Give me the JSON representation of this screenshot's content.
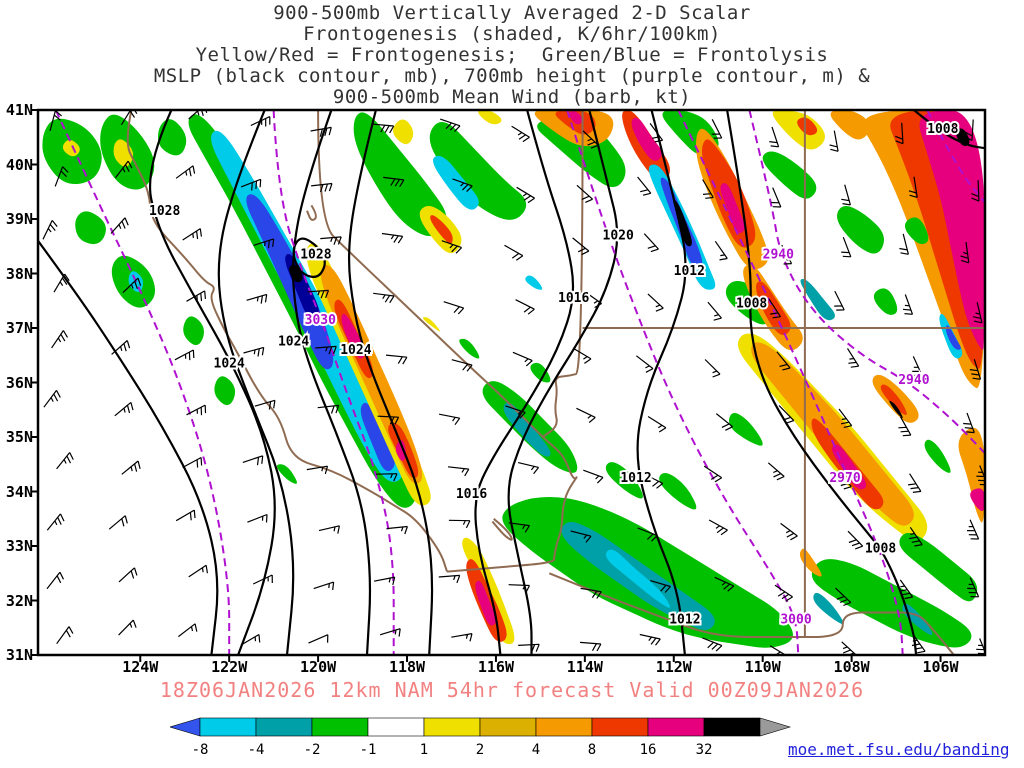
{
  "title": {
    "line1": "900-500mb Vertically Averaged 2-D Scalar",
    "line2": "Frontogenesis (shaded, K/6hr/100km)",
    "line3": "Yellow/Red = Frontogenesis;  Green/Blue = Frontolysis",
    "line4": "MSLP (black contour, mb), 700mb height (purple contour, m) &",
    "line5": "900-500mb Mean Wind (barb, kt)"
  },
  "axes": {
    "lat_ticks": [
      "41N",
      "40N",
      "39N",
      "38N",
      "37N",
      "36N",
      "35N",
      "34N",
      "33N",
      "32N",
      "31N"
    ],
    "lon_ticks": [
      "124W",
      "122W",
      "120W",
      "118W",
      "116W",
      "114W",
      "112W",
      "110W",
      "108W",
      "106W"
    ]
  },
  "footer": {
    "caption": "18Z06JAN2026 12km NAM 54hr forecast Valid 00Z09JAN2026"
  },
  "credit": {
    "text": "moe.met.fsu.edu/banding"
  },
  "colors": {
    "mslp_contour": "#000000",
    "height_contour": "#b010d0",
    "state_border": "#8f6b52",
    "caption": "#f28282",
    "link": "#2222dd"
  },
  "colorbar": {
    "labels": [
      "-8",
      "-4",
      "-2",
      "-1",
      "1",
      "2",
      "4",
      "8",
      "16",
      "32"
    ],
    "segment_colors": [
      "#00cbe8",
      "#00a0a8",
      "#00c000",
      "#ffffff",
      "#f0e000",
      "#dcb000",
      "#f59a00",
      "#ee3800",
      "#e6007e",
      "#000000"
    ],
    "left_arrow_color": "#3355ee",
    "right_arrow_color": "#9a9a9a"
  },
  "map_labels": {
    "mslp": [
      {
        "text": "1028",
        "lon": 123.45,
        "lat": 39.15
      },
      {
        "text": "1028",
        "lon": 120.05,
        "lat": 38.35
      },
      {
        "text": "1024",
        "lon": 122.0,
        "lat": 36.35
      },
      {
        "text": "1024",
        "lon": 120.55,
        "lat": 36.75
      },
      {
        "text": "1024",
        "lon": 119.15,
        "lat": 36.6
      },
      {
        "text": "1020",
        "lon": 113.25,
        "lat": 38.7
      },
      {
        "text": "1016",
        "lon": 114.25,
        "lat": 37.55
      },
      {
        "text": "1012",
        "lon": 111.65,
        "lat": 38.05
      },
      {
        "text": "1008",
        "lon": 110.25,
        "lat": 37.45
      },
      {
        "text": "1008",
        "lon": 105.95,
        "lat": 40.65
      },
      {
        "text": "1012",
        "lon": 112.85,
        "lat": 34.25
      },
      {
        "text": "1016",
        "lon": 116.55,
        "lat": 33.95
      },
      {
        "text": "1008",
        "lon": 107.35,
        "lat": 32.95
      },
      {
        "text": "1012",
        "lon": 111.75,
        "lat": 31.65
      }
    ],
    "height": [
      {
        "text": "3030",
        "lon": 119.95,
        "lat": 37.15
      },
      {
        "text": "2940",
        "lon": 109.65,
        "lat": 38.35
      },
      {
        "text": "2940",
        "lon": 106.6,
        "lat": 36.05
      },
      {
        "text": "2970",
        "lon": 108.15,
        "lat": 34.25
      },
      {
        "text": "3000",
        "lon": 109.25,
        "lat": 31.65
      }
    ]
  },
  "wind_barbs": {
    "cols": 15,
    "rows": 10,
    "base_dir": 15,
    "dir_span": 165,
    "speed_min": 12,
    "speed_var": 16
  },
  "chart_data": {
    "type": "heatmap",
    "title": "900-500mb Vertically Averaged 2-D Scalar Frontogenesis",
    "units": "K/6hr/100km",
    "shading_levels": [
      -8,
      -4,
      -2,
      -1,
      1,
      2,
      4,
      8,
      16,
      32
    ],
    "shading_interpretation": {
      "yellow_red": "Frontogenesis",
      "green_blue": "Frontolysis"
    },
    "map_extent": {
      "lat_min": 31,
      "lat_max": 41,
      "lon_ticks_deg_west": [
        124,
        122,
        120,
        118,
        116,
        114,
        112,
        110,
        108,
        106
      ]
    },
    "mslp_contour_labels_mb": [
      1028,
      1028,
      1024,
      1024,
      1024,
      1020,
      1016,
      1016,
      1012,
      1012,
      1012,
      1008,
      1008,
      1008
    ],
    "height_contour_labels_m": [
      3030,
      3000,
      2970,
      2940,
      2940
    ],
    "wind_field": "900-500mb Mean Wind (barb, kt)",
    "model": "12km NAM",
    "init": "18Z06JAN2026",
    "forecast_hour": "54hr",
    "valid": "00Z09JAN2026"
  }
}
